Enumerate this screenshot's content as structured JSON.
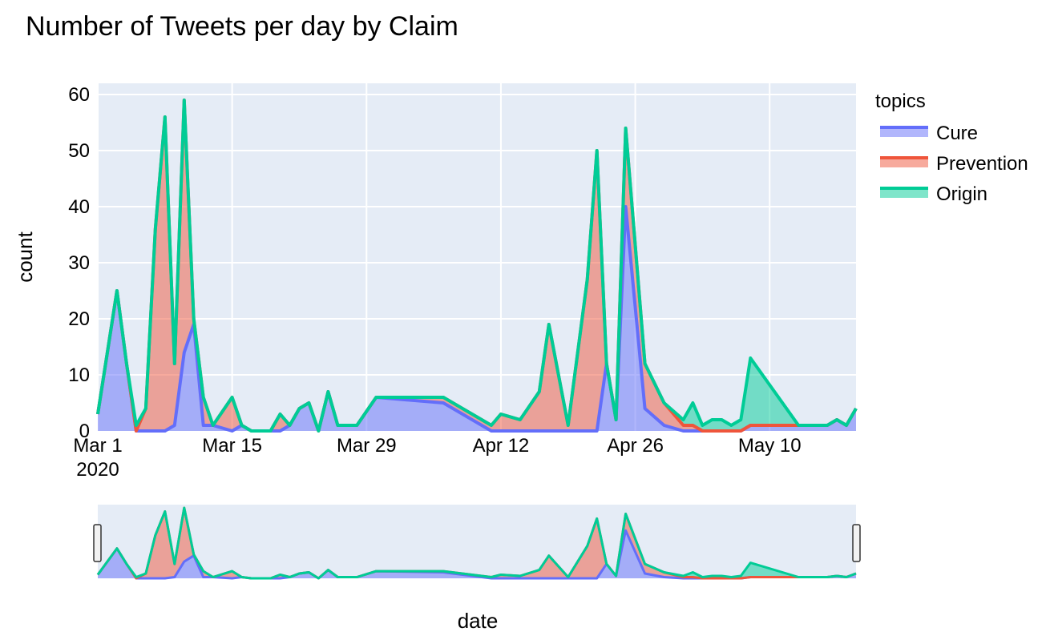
{
  "chart_data": {
    "type": "area",
    "title": "Number of Tweets per day by Claim",
    "xlabel": "date",
    "ylabel": "count",
    "ylim": [
      0,
      62
    ],
    "xlim": [
      "2020-03-01",
      "2020-05-19"
    ],
    "y_ticks": [
      0,
      10,
      20,
      30,
      40,
      50,
      60
    ],
    "x_ticks": [
      {
        "date": "2020-03-01",
        "label": "Mar 1",
        "sublabel": "2020"
      },
      {
        "date": "2020-03-15",
        "label": "Mar 15",
        "sublabel": ""
      },
      {
        "date": "2020-03-29",
        "label": "Mar 29",
        "sublabel": ""
      },
      {
        "date": "2020-04-12",
        "label": "Apr 12",
        "sublabel": ""
      },
      {
        "date": "2020-04-26",
        "label": "Apr 26",
        "sublabel": ""
      },
      {
        "date": "2020-05-10",
        "label": "May 10",
        "sublabel": ""
      }
    ],
    "legend": {
      "title": "topics",
      "placement": "right"
    },
    "grid": true,
    "stacked": true,
    "range_slider": true,
    "x": [
      "2020-03-01",
      "2020-03-03",
      "2020-03-04",
      "2020-03-05",
      "2020-03-06",
      "2020-03-07",
      "2020-03-08",
      "2020-03-09",
      "2020-03-10",
      "2020-03-11",
      "2020-03-12",
      "2020-03-13",
      "2020-03-15",
      "2020-03-16",
      "2020-03-17",
      "2020-03-18",
      "2020-03-19",
      "2020-03-20",
      "2020-03-21",
      "2020-03-22",
      "2020-03-23",
      "2020-03-24",
      "2020-03-25",
      "2020-03-26",
      "2020-03-28",
      "2020-03-30",
      "2020-04-06",
      "2020-04-11",
      "2020-04-12",
      "2020-04-14",
      "2020-04-16",
      "2020-04-17",
      "2020-04-19",
      "2020-04-21",
      "2020-04-22",
      "2020-04-23",
      "2020-04-24",
      "2020-04-25",
      "2020-04-27",
      "2020-04-29",
      "2020-05-01",
      "2020-05-02",
      "2020-05-03",
      "2020-05-04",
      "2020-05-05",
      "2020-05-06",
      "2020-05-07",
      "2020-05-08",
      "2020-05-13",
      "2020-05-16",
      "2020-05-17",
      "2020-05-18",
      "2020-05-19"
    ],
    "series": [
      {
        "name": "Cure",
        "color": "#636efa",
        "fill": "rgba(99,110,250,0.5)",
        "values": [
          3,
          25,
          12,
          0,
          0,
          0,
          0,
          1,
          14,
          19,
          1,
          1,
          0,
          1,
          0,
          0,
          0,
          0,
          1,
          4,
          5,
          0,
          7,
          1,
          1,
          6,
          5,
          0,
          0,
          0,
          0,
          0,
          0,
          0,
          0,
          12,
          2,
          40,
          4,
          1,
          0,
          0,
          0,
          0,
          0,
          0,
          0,
          1,
          1,
          1,
          2,
          1,
          4
        ]
      },
      {
        "name": "Prevention",
        "color": "#ef553b",
        "fill": "rgba(239,85,59,0.5)",
        "values": [
          0,
          0,
          0,
          0,
          4,
          36,
          56,
          11,
          45,
          1,
          5,
          0,
          6,
          0,
          0,
          0,
          0,
          3,
          0,
          0,
          0,
          0,
          0,
          0,
          0,
          0,
          1,
          1,
          3,
          2,
          7,
          19,
          1,
          27,
          50,
          0,
          0,
          14,
          8,
          4,
          1,
          1,
          0,
          0,
          0,
          0,
          0,
          0,
          0,
          0,
          0,
          0,
          0
        ]
      },
      {
        "name": "Origin",
        "color": "#00cc96",
        "fill": "rgba(0,204,150,0.5)",
        "values": [
          0,
          0,
          0,
          1,
          0,
          0,
          0,
          0,
          0,
          0,
          0,
          0,
          0,
          0,
          0,
          0,
          0,
          0,
          0,
          0,
          0,
          0,
          0,
          0,
          0,
          0,
          0,
          0,
          0,
          0,
          0,
          0,
          0,
          0,
          0,
          0,
          0,
          0,
          0,
          0,
          1,
          4,
          1,
          2,
          2,
          1,
          2,
          12,
          0,
          0,
          0,
          0,
          0
        ]
      }
    ]
  }
}
